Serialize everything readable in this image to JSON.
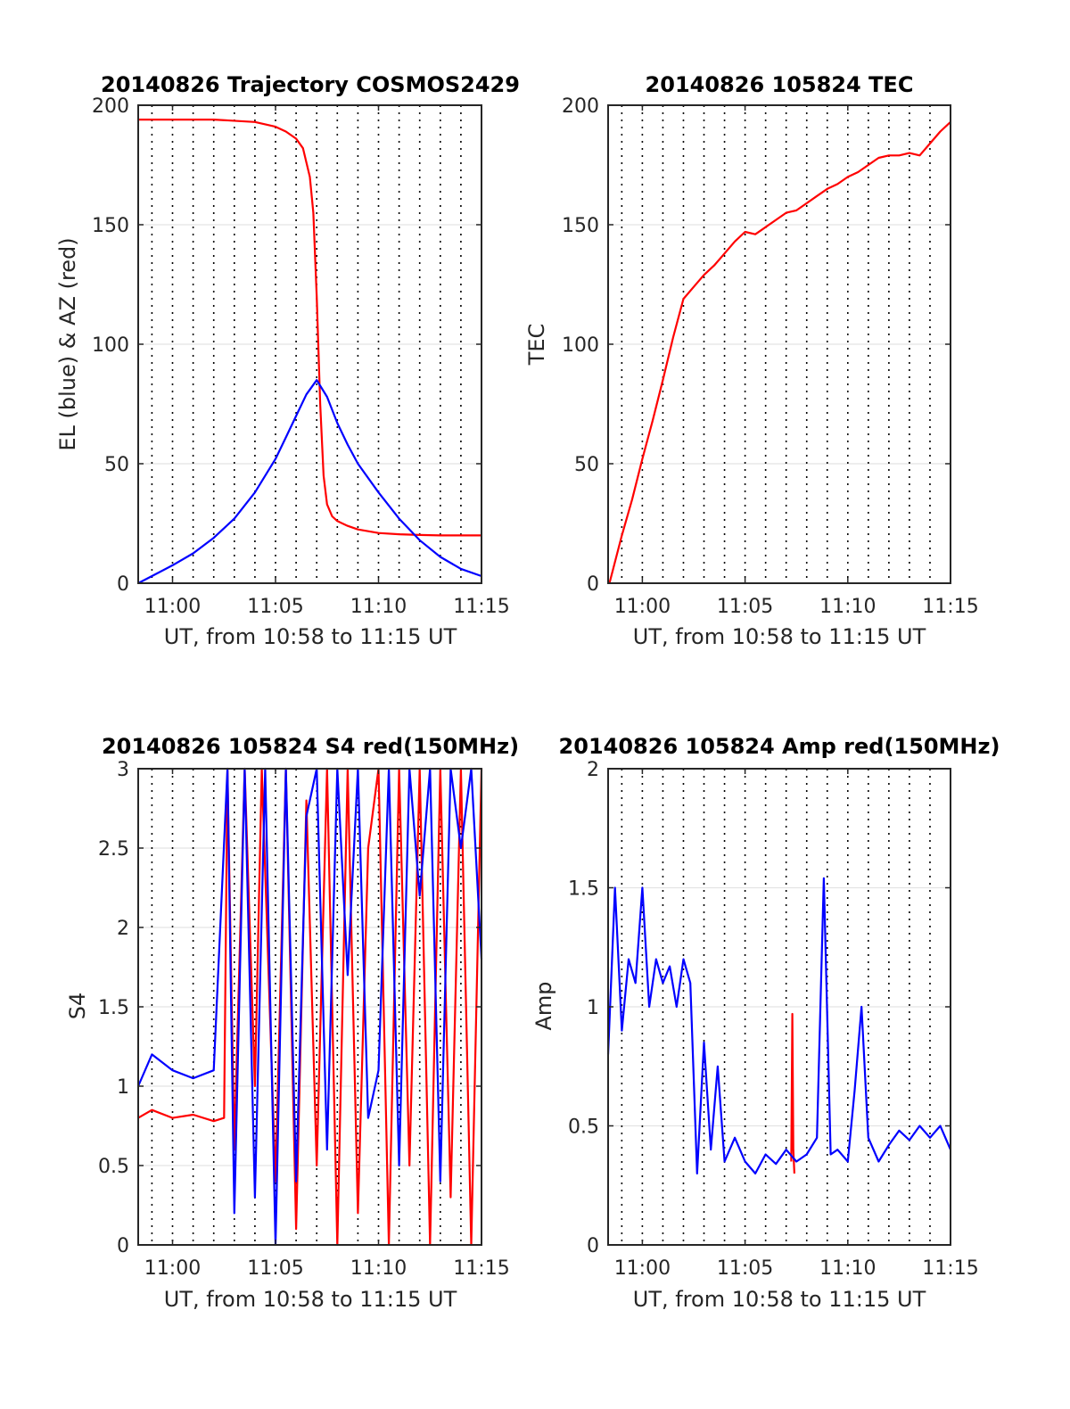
{
  "figure": {
    "x_tick_labels": [
      "11:00",
      "11:05",
      "11:10",
      "11:15"
    ],
    "colors": {
      "red": "#ff0000",
      "blue": "#0000ff"
    }
  },
  "chart_data": [
    {
      "id": "trajectory",
      "type": "line",
      "title": "20140826 Trajectory COSMOS2429",
      "xlabel": "UT, from 10:58 to 11:15 UT",
      "ylabel": "EL (blue) & AZ (red)",
      "xlim": [
        "10:58:20",
        "11:15:00"
      ],
      "ylim": [
        0,
        200
      ],
      "yticks": [
        0,
        50,
        100,
        150,
        200
      ],
      "ytick_labels": [
        "0",
        "50",
        "100",
        "150",
        "200"
      ],
      "xticks": [
        "11:00",
        "11:05",
        "11:10",
        "11:15"
      ],
      "grid": true,
      "series": [
        {
          "color": "#ff0000",
          "x": [
            "10:58:20",
            "11:00:00",
            "11:02:00",
            "11:04:00",
            "11:05:00",
            "11:05:30",
            "11:06:00",
            "11:06:20",
            "11:06:40",
            "11:06:50",
            "11:07:00",
            "11:07:10",
            "11:07:20",
            "11:07:30",
            "11:07:45",
            "11:08:00",
            "11:08:30",
            "11:09:00",
            "11:10:00",
            "11:11:00",
            "11:12:00",
            "11:13:00",
            "11:15:00"
          ],
          "y": [
            194,
            194,
            194,
            193,
            191,
            189,
            186,
            182,
            170,
            155,
            120,
            75,
            45,
            33,
            28,
            26,
            24,
            22.5,
            21,
            20.5,
            20.2,
            20,
            20
          ]
        },
        {
          "color": "#0000ff",
          "x": [
            "10:58:20",
            "10:59:00",
            "11:00:00",
            "11:01:00",
            "11:02:00",
            "11:03:00",
            "11:04:00",
            "11:05:00",
            "11:05:30",
            "11:06:00",
            "11:06:30",
            "11:07:00",
            "11:07:30",
            "11:08:00",
            "11:08:30",
            "11:09:00",
            "11:10:00",
            "11:11:00",
            "11:12:00",
            "11:13:00",
            "11:14:00",
            "11:15:00"
          ],
          "y": [
            0,
            3,
            7.5,
            12.5,
            19,
            27,
            38,
            52,
            61,
            70,
            79,
            85,
            78,
            67,
            58,
            50,
            38,
            27,
            18,
            11,
            6,
            3
          ]
        }
      ]
    },
    {
      "id": "tec",
      "type": "line",
      "title": "20140826 105824 TEC",
      "xlabel": "UT, from 10:58 to 11:15 UT",
      "ylabel": "TEC",
      "xlim": [
        "10:58:20",
        "11:15:00"
      ],
      "ylim": [
        0,
        200
      ],
      "yticks": [
        0,
        50,
        100,
        150,
        200
      ],
      "ytick_labels": [
        "0",
        "50",
        "100",
        "150",
        "200"
      ],
      "xticks": [
        "11:00",
        "11:05",
        "11:10",
        "11:15"
      ],
      "grid": true,
      "series": [
        {
          "color": "#ff0000",
          "x": [
            "10:58:24",
            "10:59:00",
            "10:59:30",
            "11:00:00",
            "11:00:30",
            "11:01:00",
            "11:01:30",
            "11:02:00",
            "11:02:30",
            "11:03:00",
            "11:03:30",
            "11:04:00",
            "11:04:30",
            "11:05:00",
            "11:05:30",
            "11:06:00",
            "11:06:30",
            "11:07:00",
            "11:07:30",
            "11:08:00",
            "11:08:30",
            "11:09:00",
            "11:09:30",
            "11:10:00",
            "11:10:30",
            "11:11:00",
            "11:11:30",
            "11:12:00",
            "11:12:30",
            "11:13:00",
            "11:13:30",
            "11:14:00",
            "11:14:30",
            "11:15:00"
          ],
          "y": [
            0,
            20,
            35,
            52,
            68,
            85,
            103,
            119,
            124,
            129,
            133,
            138,
            143,
            147,
            146,
            149,
            152,
            155,
            156,
            159,
            162,
            165,
            167,
            170,
            172,
            175,
            178,
            179,
            179,
            180,
            179,
            184,
            189,
            193
          ]
        }
      ]
    },
    {
      "id": "s4",
      "type": "line",
      "title": "20140826 105824 S4 red(150MHz)",
      "xlabel": "UT, from 10:58 to 11:15 UT",
      "ylabel": "S4",
      "xlim": [
        "10:58:20",
        "11:15:00"
      ],
      "ylim": [
        0,
        3
      ],
      "yticks": [
        0,
        0.5,
        1,
        1.5,
        2,
        2.5,
        3
      ],
      "ytick_labels": [
        "0",
        "0.5",
        "1",
        "1.5",
        "2",
        "2.5",
        "3"
      ],
      "xticks": [
        "11:00",
        "11:05",
        "11:10",
        "11:15"
      ],
      "grid": true,
      "series": [
        {
          "color": "#ff0000",
          "x": [
            "10:58:20",
            "10:59:00",
            "11:00:00",
            "11:01:00",
            "11:02:00",
            "11:02:30",
            "11:02:40",
            "11:03:00",
            "11:03:30",
            "11:04:00",
            "11:04:20",
            "11:05:00",
            "11:05:30",
            "11:06:00",
            "11:06:30",
            "11:07:00",
            "11:07:30",
            "11:08:00",
            "11:08:30",
            "11:09:00",
            "11:09:30",
            "11:10:00",
            "11:10:30",
            "11:11:00",
            "11:11:30",
            "11:12:00",
            "11:12:30",
            "11:13:00",
            "11:13:30",
            "11:14:00",
            "11:14:30",
            "11:15:00"
          ],
          "y": [
            0.8,
            0.85,
            0.8,
            0.82,
            0.78,
            0.8,
            3,
            0.6,
            3,
            1.0,
            3,
            0.4,
            3,
            0.1,
            2.8,
            0.5,
            3,
            0,
            3,
            0.2,
            2.5,
            3,
            0,
            3,
            0.5,
            3,
            0,
            3,
            0.3,
            3,
            0,
            3
          ]
        },
        {
          "color": "#0000ff",
          "x": [
            "10:58:20",
            "10:59:00",
            "11:00:00",
            "11:01:00",
            "11:02:00",
            "11:02:40",
            "11:03:00",
            "11:03:30",
            "11:04:00",
            "11:04:30",
            "11:05:00",
            "11:05:30",
            "11:06:00",
            "11:06:30",
            "11:07:00",
            "11:07:30",
            "11:08:00",
            "11:08:30",
            "11:09:00",
            "11:09:30",
            "11:10:00",
            "11:10:30",
            "11:11:00",
            "11:11:30",
            "11:12:00",
            "11:12:30",
            "11:13:00",
            "11:13:30",
            "11:14:00",
            "11:14:30",
            "11:15:00"
          ],
          "y": [
            1.0,
            1.2,
            1.1,
            1.05,
            1.1,
            3,
            0.2,
            3,
            0.3,
            3,
            0,
            3,
            0.4,
            2.7,
            3,
            0.6,
            3,
            1.7,
            3,
            0.8,
            1.1,
            3,
            0.5,
            3,
            2.2,
            3,
            0.4,
            3,
            2.5,
            3,
            1.8
          ]
        }
      ]
    },
    {
      "id": "amp",
      "type": "line",
      "title": "20140826 105824 Amp red(150MHz)",
      "xlabel": "UT, from 10:58 to 11:15 UT",
      "ylabel": "Amp",
      "xlim": [
        "10:58:20",
        "11:15:00"
      ],
      "ylim": [
        0,
        2
      ],
      "yticks": [
        0,
        0.5,
        1,
        1.5,
        2
      ],
      "ytick_labels": [
        "0",
        "0.5",
        "1",
        "1.5",
        "2"
      ],
      "xticks": [
        "11:00",
        "11:05",
        "11:10",
        "11:15"
      ],
      "grid": true,
      "series": [
        {
          "color": "#ff0000",
          "x": [
            "11:07:15",
            "11:07:18",
            "11:07:21",
            "11:07:24"
          ],
          "y": [
            0.35,
            0.97,
            0.4,
            0.3
          ]
        },
        {
          "color": "#0000ff",
          "x": [
            "10:58:20",
            "10:58:40",
            "10:59:00",
            "10:59:20",
            "10:59:40",
            "11:00:00",
            "11:00:20",
            "11:00:40",
            "11:01:00",
            "11:01:20",
            "11:01:40",
            "11:02:00",
            "11:02:20",
            "11:02:40",
            "11:03:00",
            "11:03:20",
            "11:03:40",
            "11:04:00",
            "11:04:30",
            "11:05:00",
            "11:05:30",
            "11:06:00",
            "11:06:30",
            "11:07:00",
            "11:07:30",
            "11:08:00",
            "11:08:30",
            "11:08:50",
            "11:09:10",
            "11:09:30",
            "11:10:00",
            "11:10:20",
            "11:10:40",
            "11:11:00",
            "11:11:30",
            "11:12:00",
            "11:12:30",
            "11:13:00",
            "11:13:30",
            "11:14:00",
            "11:14:30",
            "11:15:00"
          ],
          "y": [
            0.8,
            1.5,
            0.9,
            1.2,
            1.1,
            1.5,
            1.0,
            1.2,
            1.1,
            1.17,
            1.0,
            1.2,
            1.1,
            0.3,
            0.85,
            0.4,
            0.75,
            0.35,
            0.45,
            0.35,
            0.3,
            0.38,
            0.34,
            0.4,
            0.35,
            0.38,
            0.45,
            1.54,
            0.38,
            0.4,
            0.35,
            0.65,
            1.0,
            0.45,
            0.35,
            0.42,
            0.48,
            0.44,
            0.5,
            0.45,
            0.5,
            0.4
          ]
        }
      ]
    }
  ]
}
